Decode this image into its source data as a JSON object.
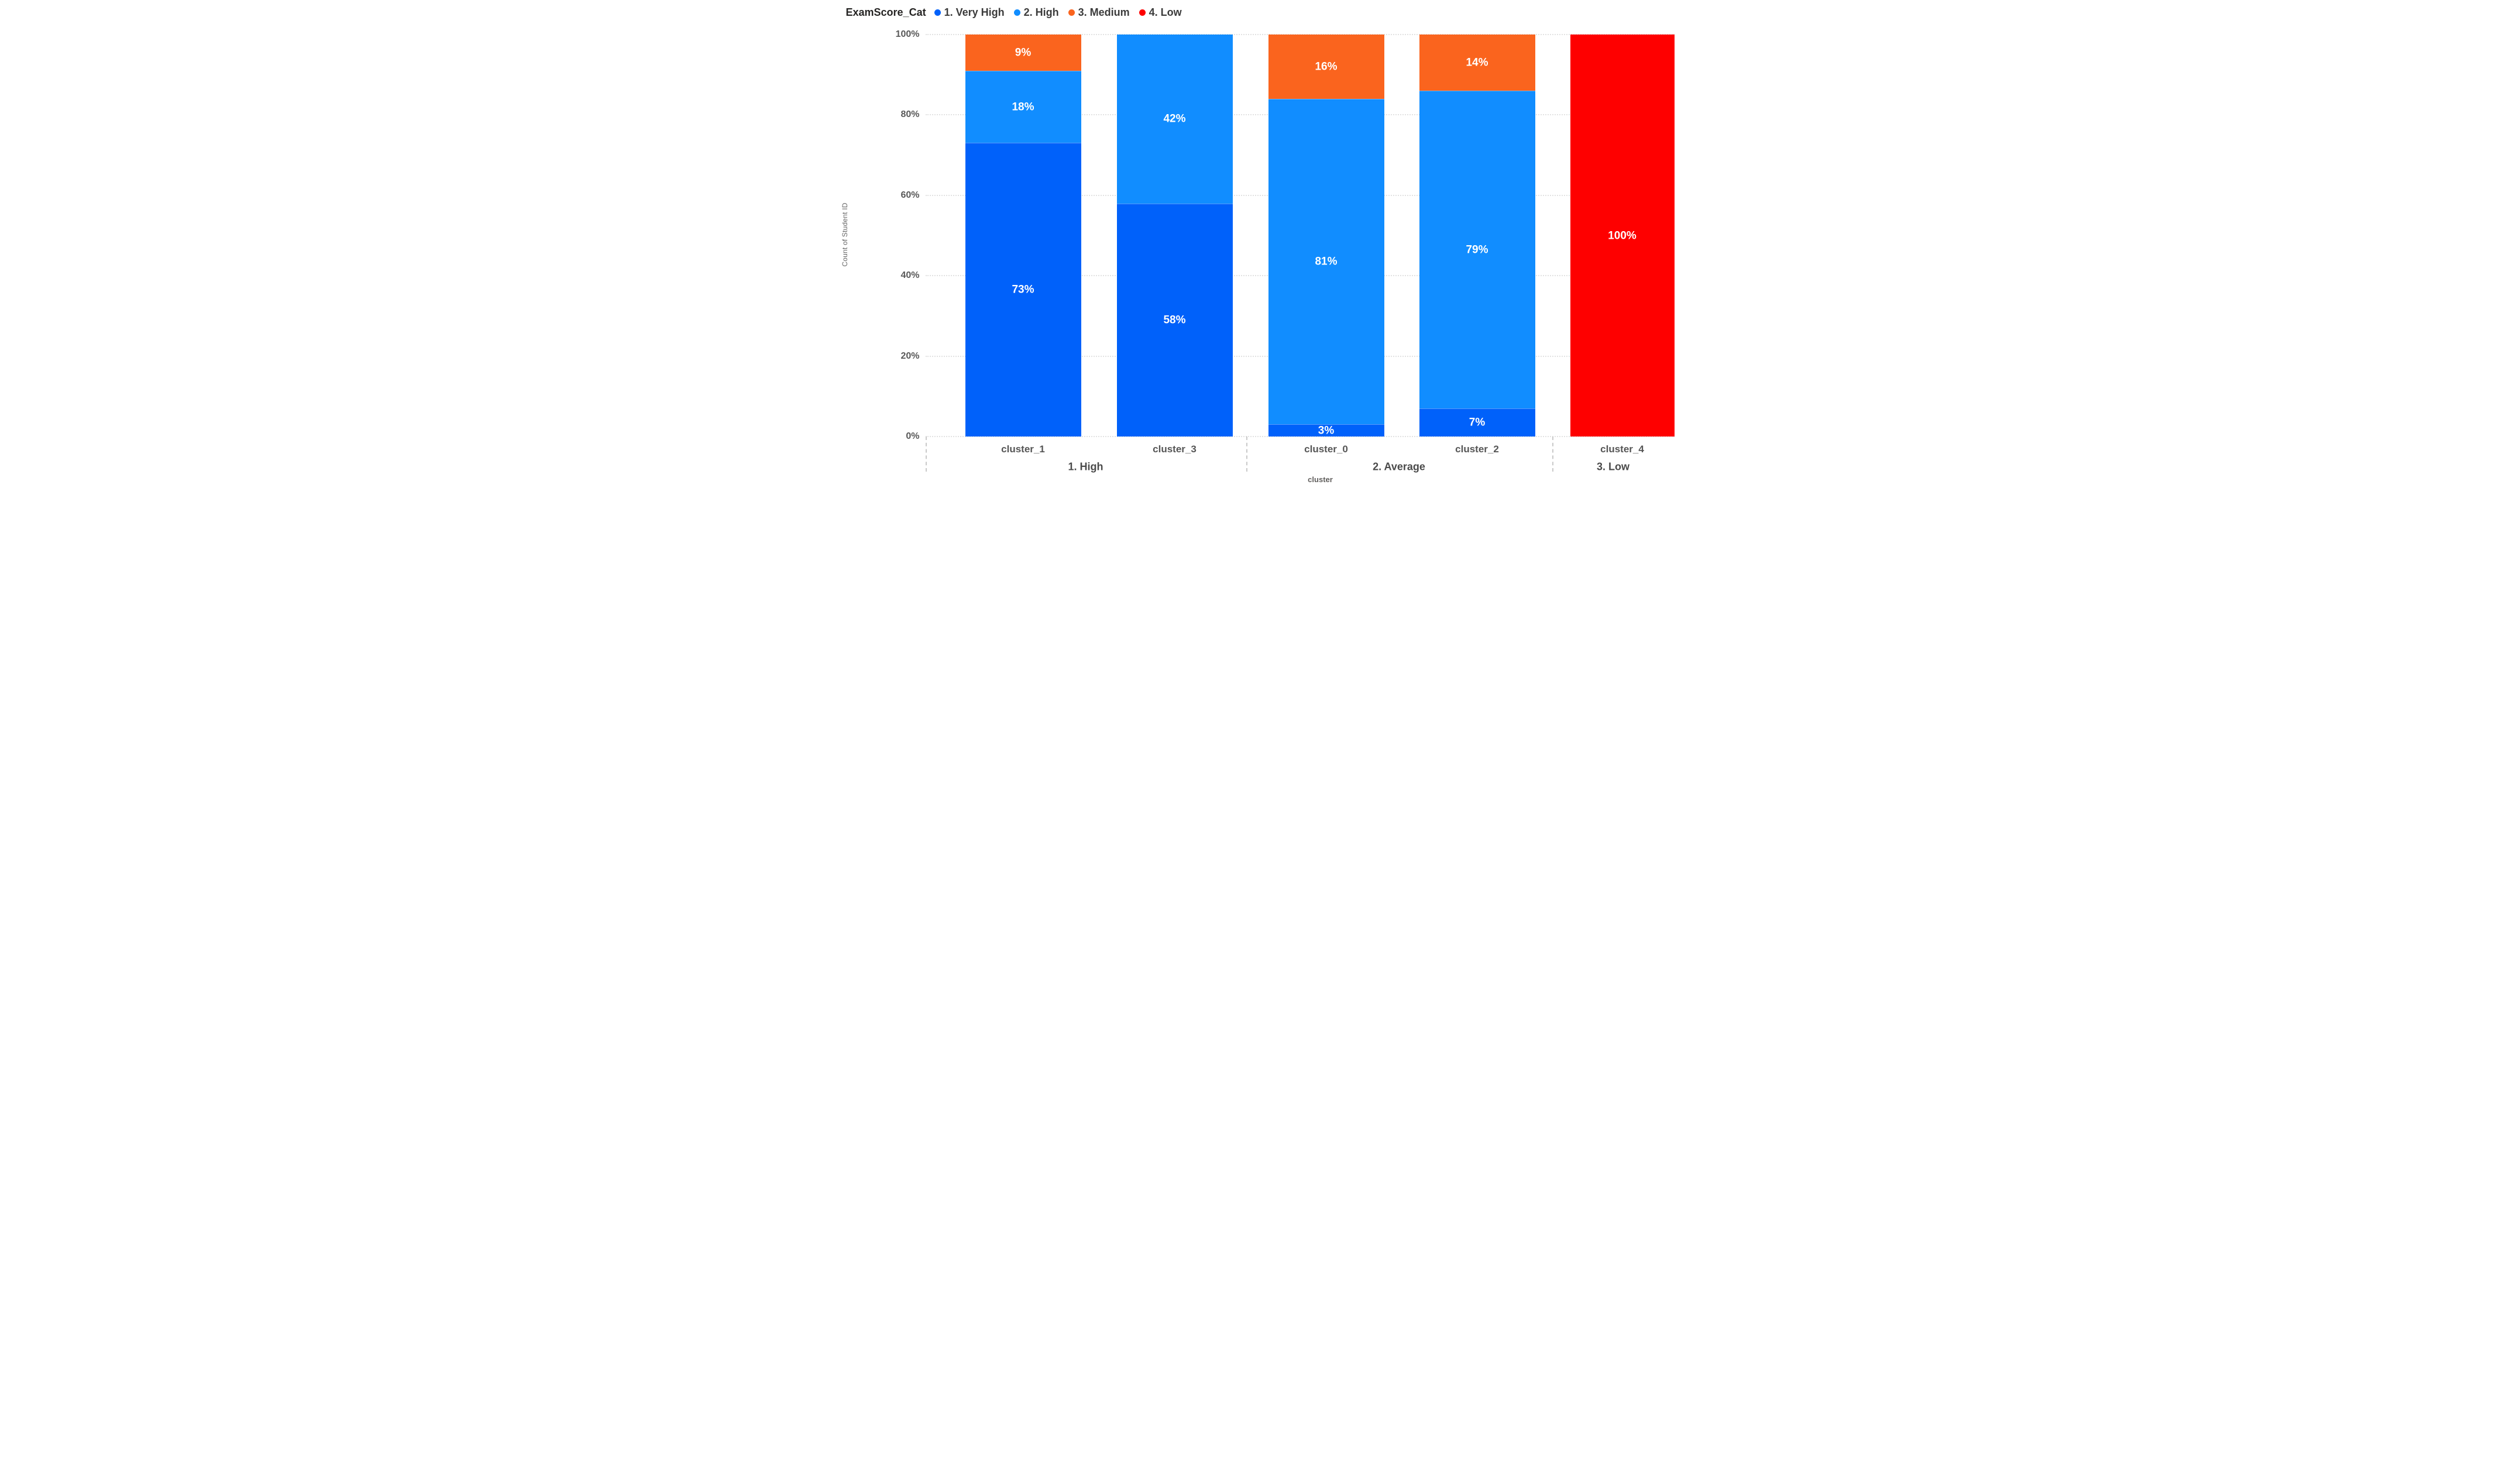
{
  "legend": {
    "title": "ExamScore_Cat",
    "items": [
      {
        "label": "1. Very High",
        "color": "#0061FA"
      },
      {
        "label": "2. High",
        "color": "#118DFF"
      },
      {
        "label": "3. Medium",
        "color": "#FA641E"
      },
      {
        "label": "4. Low",
        "color": "#FE0000"
      }
    ]
  },
  "chart_data": {
    "type": "bar",
    "variant": "100%-stacked-column",
    "title": "",
    "xlabel": "cluster",
    "ylabel": "Count of Student ID",
    "ylim": [
      0,
      100
    ],
    "y_tick_values": [
      0,
      20,
      40,
      60,
      80,
      100
    ],
    "y_tick_labels": [
      "0%",
      "20%",
      "40%",
      "60%",
      "80%",
      "100%"
    ],
    "grid": "horizontal dotted",
    "legend_position": "top-left",
    "categories": [
      "cluster_1",
      "cluster_3",
      "cluster_0",
      "cluster_2",
      "cluster_4"
    ],
    "groups": [
      {
        "label": "1. High",
        "categories": [
          "cluster_1",
          "cluster_3"
        ]
      },
      {
        "label": "2. Average",
        "categories": [
          "cluster_0",
          "cluster_2"
        ]
      },
      {
        "label": "3. Low",
        "categories": [
          "cluster_4"
        ]
      }
    ],
    "series": [
      {
        "name": "1. Very High",
        "color": "#0061FA",
        "values": [
          73,
          58,
          3,
          7,
          0
        ]
      },
      {
        "name": "2. High",
        "color": "#118DFF",
        "values": [
          18,
          42,
          81,
          79,
          0
        ]
      },
      {
        "name": "3. Medium",
        "color": "#FA641E",
        "values": [
          9,
          0,
          16,
          14,
          0
        ]
      },
      {
        "name": "4. Low",
        "color": "#FE0000",
        "values": [
          0,
          0,
          0,
          0,
          100
        ]
      }
    ],
    "data_labels": [
      "9%",
      "18%",
      "73%",
      "42%",
      "58%",
      "16%",
      "81%",
      "3%",
      "14%",
      "79%",
      "7%",
      "100%"
    ],
    "data_label_color": "#FFFFFF"
  }
}
